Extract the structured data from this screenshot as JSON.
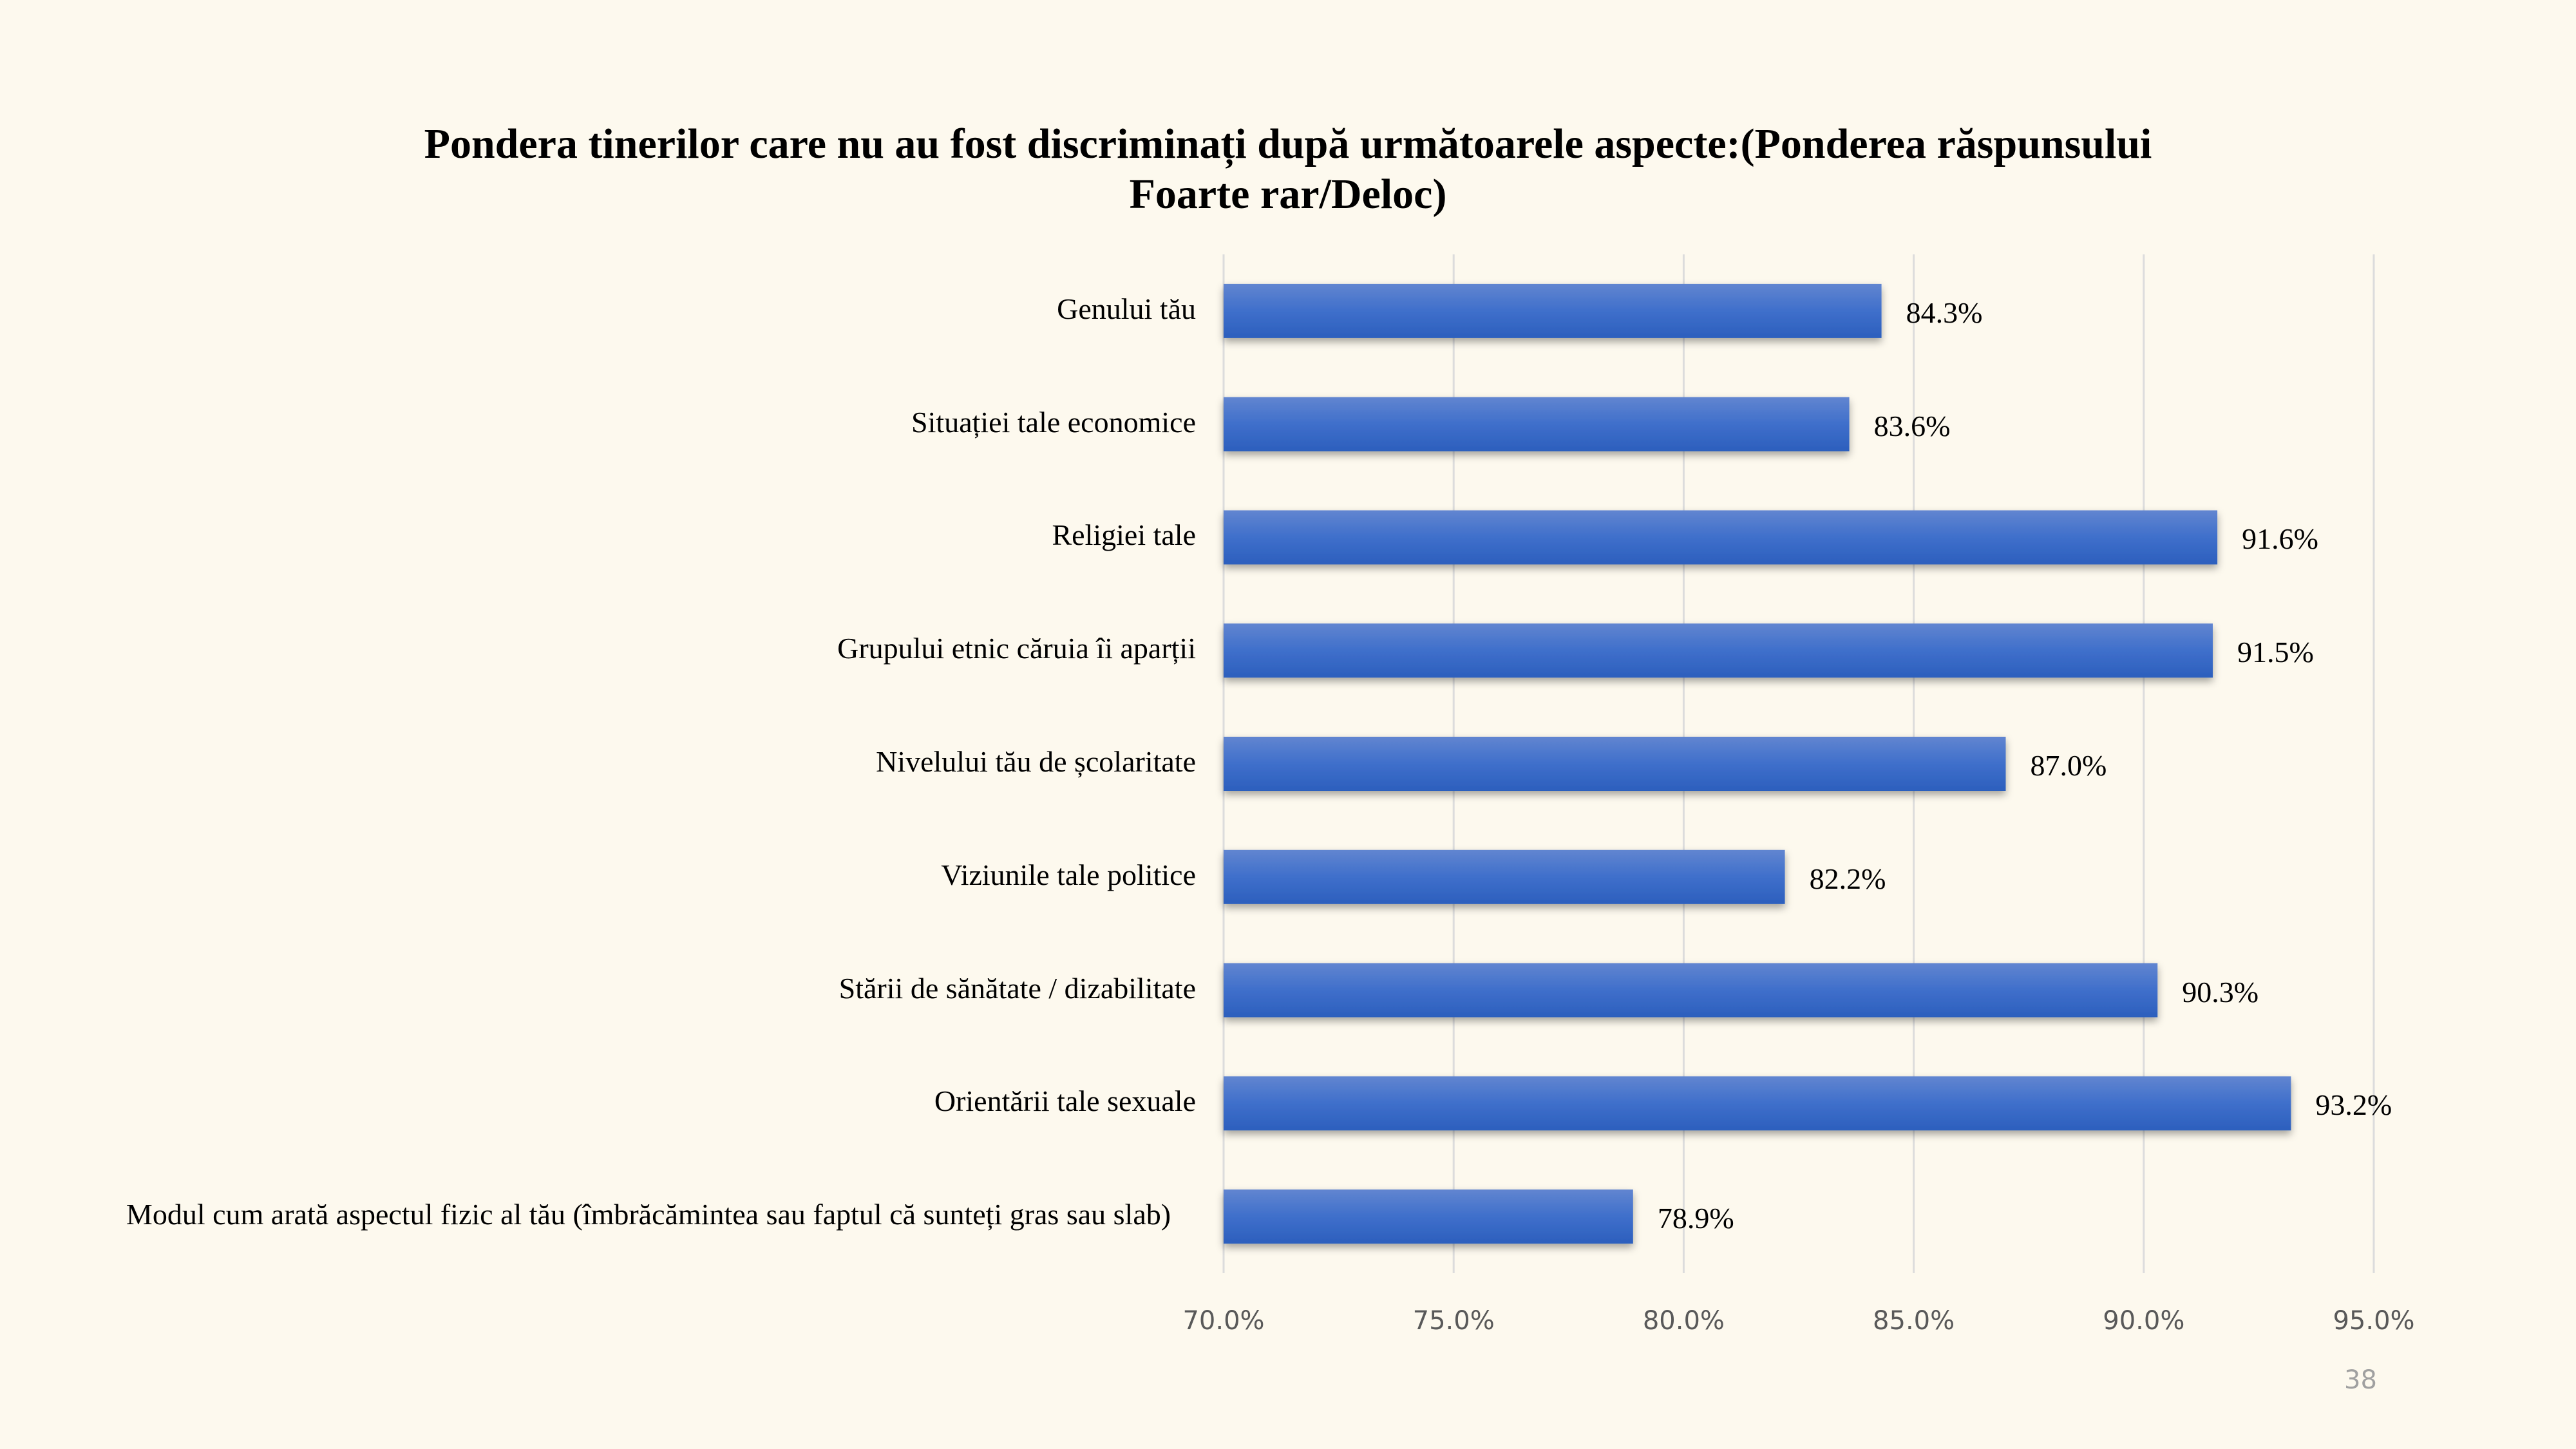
{
  "chart_data": {
    "type": "bar",
    "orientation": "horizontal",
    "title_lines": [
      "Pondera tinerilor care nu au fost discriminați după următoarele aspecte:(Ponderea răspunsului",
      "Foarte rar/Deloc)"
    ],
    "categories": [
      "Genului tău",
      "Situației tale economice",
      "Religiei tale",
      "Grupului etnic căruia îi aparții",
      "Nivelului tău de școlaritate",
      "Viziunile tale politice",
      "Stării de sănătate / dizabilitate",
      "Orientării tale sexuale",
      "Modul cum arată aspectul fizic al tău (îmbrăcămintea sau faptul că sunteți gras sau slab)"
    ],
    "values": [
      84.3,
      83.6,
      91.6,
      91.5,
      87.0,
      82.2,
      90.3,
      93.2,
      78.9
    ],
    "data_labels": [
      "84.3%",
      "83.6%",
      "91.6%",
      "91.5%",
      "87.0%",
      "82.2%",
      "90.3%",
      "93.2%",
      "78.9%"
    ],
    "xlim": [
      70,
      95
    ],
    "x_ticks": [
      "70.0%",
      "75.0%",
      "80.0%",
      "85.0%",
      "90.0%",
      "95.0%"
    ],
    "grid": "vertical",
    "bar_color": "#3a6bc8",
    "background": "#fdf9ee"
  },
  "page_number": "38"
}
